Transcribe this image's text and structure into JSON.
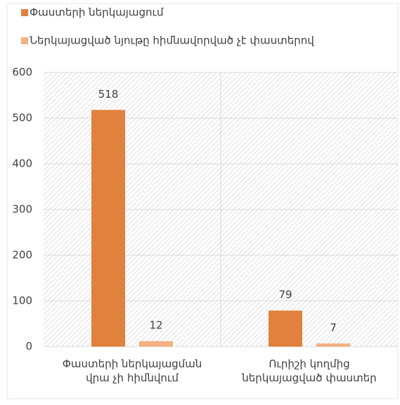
{
  "chart_data": {
    "type": "bar",
    "categories": [
      [
        "Փաստերի ներկայացման",
        "վրա չի հիմնվում"
      ],
      [
        "Ուրիշի կողմից",
        "ներկայացված փաստեր"
      ]
    ],
    "series": [
      {
        "name": "Փաստերի ներկայացում",
        "color": "#e0823d",
        "values": [
          518,
          79
        ]
      },
      {
        "name": "Ներկայացված նյութը հիմնավորված չէ փաստերով",
        "color": "#f4b183",
        "values": [
          12,
          7
        ]
      }
    ],
    "ylim": [
      0,
      600
    ],
    "yticks": [
      0,
      100,
      200,
      300,
      400,
      500,
      600
    ],
    "grid": true,
    "legend": "top-left"
  }
}
